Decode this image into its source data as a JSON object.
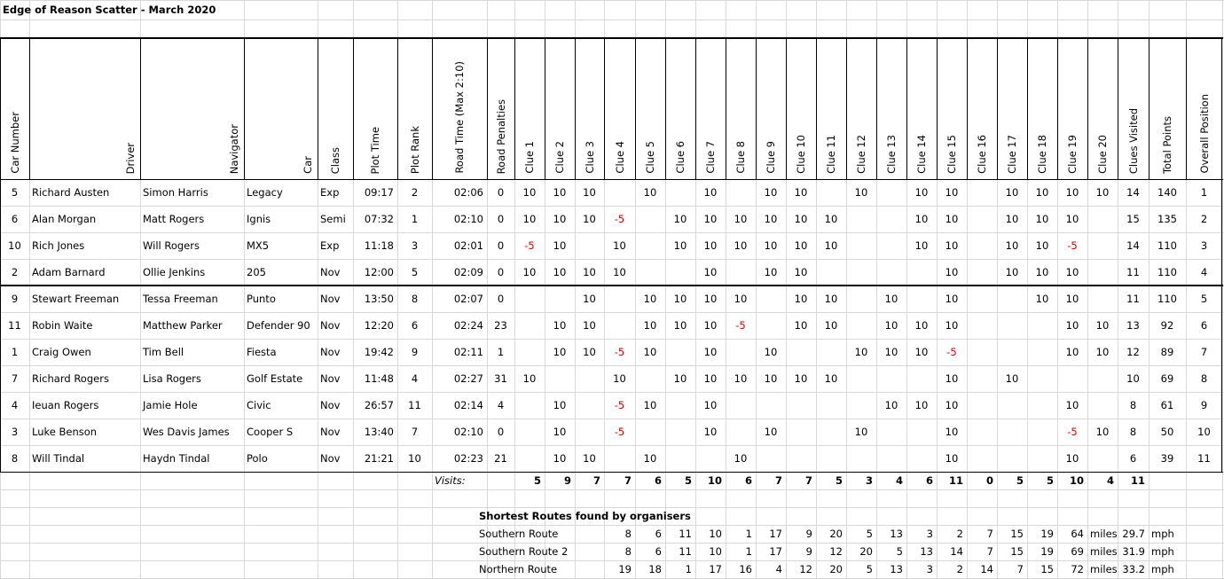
{
  "title": "Edge of Reason Scatter - March 2020",
  "table": {
    "headers": [
      "Car Number",
      "Driver",
      "Navigator",
      "Car",
      "Class",
      "Plot Time",
      "Plot Rank",
      "Road Time (Max 2:10)",
      "Road Penalties",
      "Clue 1",
      "Clue 2",
      "Clue 3",
      "Clue 4",
      "Clue 5",
      "Clue 6",
      "Clue 7",
      "Clue 8",
      "Clue 9",
      "Clue 10",
      "Clue 11",
      "Clue 12",
      "Clue 13",
      "Clue 14",
      "Clue 15",
      "Clue 16",
      "Clue 17",
      "Clue 18",
      "Clue 19",
      "Clue 20",
      "Clues Visited",
      "Total Points",
      "Overall Position"
    ],
    "rows": [
      [
        5,
        "Richard Austen",
        "Simon Harris",
        "Legacy",
        "Exp",
        "09:17",
        2,
        "02:06",
        0,
        10,
        10,
        10,
        null,
        10,
        null,
        10,
        null,
        10,
        10,
        null,
        10,
        null,
        10,
        10,
        null,
        10,
        10,
        10,
        10,
        14,
        140,
        1
      ],
      [
        6,
        "Alan Morgan",
        "Matt Rogers",
        "Ignis",
        "Semi",
        "07:32",
        1,
        "02:10",
        0,
        10,
        10,
        10,
        -5,
        null,
        10,
        10,
        10,
        10,
        10,
        10,
        null,
        null,
        10,
        10,
        null,
        10,
        10,
        10,
        null,
        15,
        135,
        2
      ],
      [
        10,
        "Rich Jones",
        "Will Rogers",
        "MX5",
        "Exp",
        "11:18",
        3,
        "02:01",
        0,
        -5,
        10,
        null,
        10,
        null,
        10,
        10,
        10,
        10,
        10,
        10,
        null,
        null,
        10,
        10,
        null,
        10,
        10,
        -5,
        null,
        14,
        110,
        3
      ],
      [
        2,
        "Adam Barnard",
        "Ollie Jenkins",
        "205",
        "Nov",
        "12:00",
        5,
        "02:09",
        0,
        10,
        10,
        10,
        10,
        null,
        null,
        10,
        null,
        10,
        10,
        null,
        null,
        null,
        null,
        10,
        null,
        10,
        10,
        10,
        null,
        11,
        110,
        4
      ],
      [
        9,
        "Stewart Freeman",
        "Tessa Freeman",
        "Punto",
        "Nov",
        "13:50",
        8,
        "02:07",
        0,
        null,
        null,
        10,
        null,
        10,
        10,
        10,
        10,
        null,
        10,
        10,
        null,
        10,
        null,
        10,
        null,
        null,
        10,
        10,
        null,
        11,
        110,
        5
      ],
      [
        11,
        "Robin Waite",
        "Matthew Parker",
        "Defender 90",
        "Nov",
        "12:20",
        6,
        "02:24",
        23,
        null,
        10,
        10,
        null,
        10,
        10,
        10,
        -5,
        null,
        10,
        10,
        null,
        10,
        10,
        10,
        null,
        null,
        null,
        10,
        10,
        13,
        92,
        6
      ],
      [
        1,
        "Craig Owen",
        "Tim Bell",
        "Fiesta",
        "Nov",
        "19:42",
        9,
        "02:11",
        1,
        null,
        10,
        10,
        -5,
        10,
        null,
        10,
        null,
        10,
        null,
        null,
        10,
        10,
        10,
        -5,
        null,
        null,
        null,
        10,
        10,
        12,
        89,
        7
      ],
      [
        7,
        "Richard Rogers",
        "Lisa Rogers",
        "Golf Estate",
        "Nov",
        "11:48",
        4,
        "02:27",
        31,
        10,
        null,
        null,
        10,
        null,
        10,
        10,
        10,
        10,
        10,
        10,
        null,
        null,
        null,
        10,
        null,
        10,
        null,
        null,
        null,
        10,
        69,
        8
      ],
      [
        4,
        "Ieuan Rogers",
        "Jamie Hole",
        "Civic",
        "Nov",
        "26:57",
        11,
        "02:14",
        4,
        null,
        10,
        null,
        -5,
        10,
        null,
        10,
        null,
        null,
        null,
        null,
        null,
        10,
        10,
        10,
        null,
        null,
        null,
        10,
        null,
        8,
        61,
        9
      ],
      [
        3,
        "Luke Benson",
        "Wes Davis James",
        "Cooper S",
        "Nov",
        "13:40",
        7,
        "02:10",
        0,
        null,
        10,
        null,
        -5,
        null,
        null,
        10,
        null,
        10,
        null,
        null,
        10,
        null,
        null,
        10,
        null,
        null,
        null,
        -5,
        10,
        8,
        50,
        10
      ],
      [
        8,
        "Will Tindal",
        "Haydn Tindal",
        "Polo",
        "Nov",
        "21:21",
        10,
        "02:23",
        21,
        null,
        10,
        10,
        null,
        10,
        null,
        null,
        10,
        null,
        null,
        null,
        null,
        null,
        null,
        10,
        null,
        null,
        null,
        10,
        null,
        6,
        39,
        11
      ]
    ]
  },
  "visits": {
    "label": "Visits:",
    "values": [
      5,
      9,
      7,
      7,
      6,
      5,
      10,
      6,
      7,
      7,
      5,
      3,
      4,
      6,
      11,
      0,
      5,
      5,
      10,
      4,
      11
    ]
  },
  "routes": {
    "title": "Shortest Routes found by organisers",
    "rows": [
      {
        "label": "Southern Route",
        "stops": [
          8,
          6,
          11,
          10,
          1,
          17,
          9,
          20,
          5,
          13,
          3,
          2,
          7,
          15,
          19
        ],
        "distance": 64,
        "distance_unit": "miles",
        "speed": 29.7,
        "speed_unit": "mph"
      },
      {
        "label": "Southern Route 2",
        "stops": [
          8,
          6,
          11,
          10,
          1,
          17,
          9,
          12,
          20,
          5,
          13,
          14,
          7,
          15,
          19
        ],
        "distance": 69,
        "distance_unit": "miles",
        "speed": 31.9,
        "speed_unit": "mph"
      },
      {
        "label": "Northern Route",
        "stops": [
          19,
          18,
          1,
          17,
          16,
          4,
          12,
          20,
          5,
          13,
          3,
          2,
          14,
          7,
          15
        ],
        "distance": 72,
        "distance_unit": "miles",
        "speed": 33.2,
        "speed_unit": "mph"
      }
    ]
  }
}
